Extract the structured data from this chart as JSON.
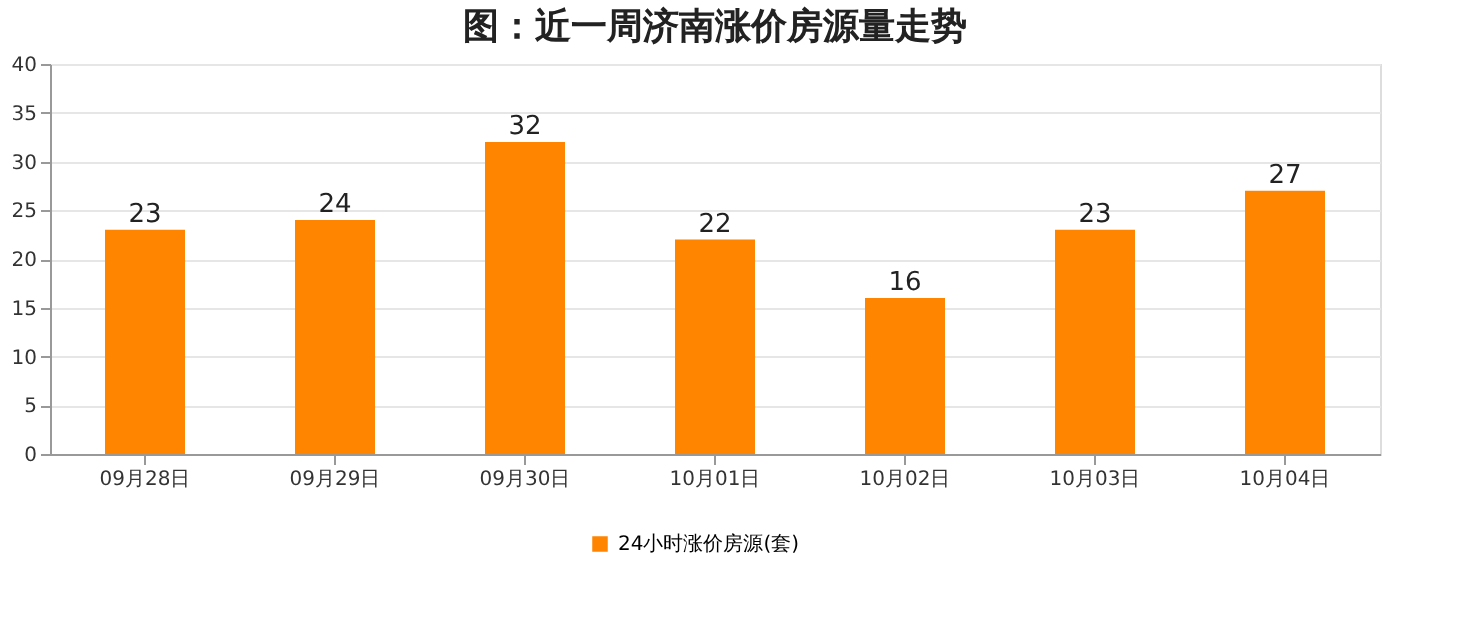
{
  "chart_data": {
    "type": "bar",
    "title": "图：近一周济南涨价房源量走势",
    "categories": [
      "09月28日",
      "09月29日",
      "09月30日",
      "10月01日",
      "10月02日",
      "10月03日",
      "10月04日"
    ],
    "series": [
      {
        "name": "24小时涨价房源(套)",
        "color": "#ff8400",
        "values": [
          23,
          24,
          32,
          22,
          16,
          23,
          27
        ]
      }
    ],
    "ylim": [
      0,
      40
    ],
    "yticks": [
      0,
      5,
      10,
      15,
      20,
      25,
      30,
      35,
      40
    ],
    "grid": "y",
    "legend": "bottom",
    "data_labels": true
  }
}
